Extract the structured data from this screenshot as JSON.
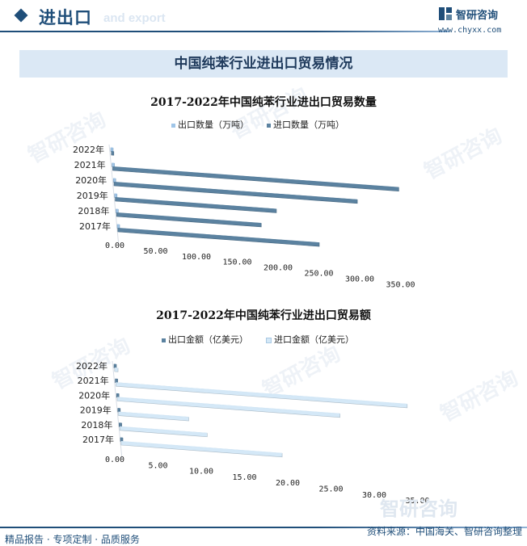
{
  "header": {
    "title": "进出口",
    "subtitle": "and export",
    "brand_name": "智研咨询",
    "brand_url": "www.chyxx.com"
  },
  "banner_title": "中国纯苯行业进出口贸易情况",
  "watermark_text": "智研咨询",
  "footer": {
    "left": "精品报告 · 专项定制 · 品质服务",
    "right": "资料来源：中国海关、智研咨询整理"
  },
  "colors": {
    "primary": "#1f4e79",
    "export_qty_bar": "#9fc5e8",
    "import_qty_bar": "#5b82a0",
    "export_amt_bar": "#5b82a0",
    "import_amt_bar": "#d4e8f7"
  },
  "chart_data": [
    {
      "type": "bar",
      "orientation": "horizontal",
      "title": "2017-2022年中国纯苯行业进出口贸易数量",
      "categories": [
        "2022年",
        "2021年",
        "2020年",
        "2019年",
        "2018年",
        "2017年"
      ],
      "series": [
        {
          "name": "出口数量（万吨）",
          "values": [
            0.3,
            0.5,
            0.6,
            1.2,
            1.6,
            0.5
          ]
        },
        {
          "name": "进口数量（万吨）",
          "values": [
            2.0,
            348.0,
            296.0,
            196.0,
            176.0,
            245.0
          ]
        }
      ],
      "xlim": [
        0,
        350
      ],
      "xticks": [
        "0.00",
        "50.00",
        "100.00",
        "150.00",
        "200.00",
        "250.00",
        "300.00",
        "350.00"
      ],
      "legend_position": "top"
    },
    {
      "type": "bar",
      "orientation": "horizontal",
      "title": "2017-2022年中国纯苯行业进出口贸易额",
      "categories": [
        "2022年",
        "2021年",
        "2020年",
        "2019年",
        "2018年",
        "2017年"
      ],
      "series": [
        {
          "name": "出口金额（亿美元）",
          "values": [
            0.1,
            0.12,
            0.15,
            0.2,
            0.3,
            0.12
          ]
        },
        {
          "name": "进口金额（亿美元）",
          "values": [
            0.4,
            34.0,
            26.0,
            8.2,
            10.2,
            18.8
          ]
        }
      ],
      "xlim": [
        0,
        35
      ],
      "xticks": [
        "0.00",
        "5.00",
        "10.00",
        "15.00",
        "20.00",
        "25.00",
        "30.00",
        "35.00"
      ],
      "legend_position": "top"
    }
  ]
}
